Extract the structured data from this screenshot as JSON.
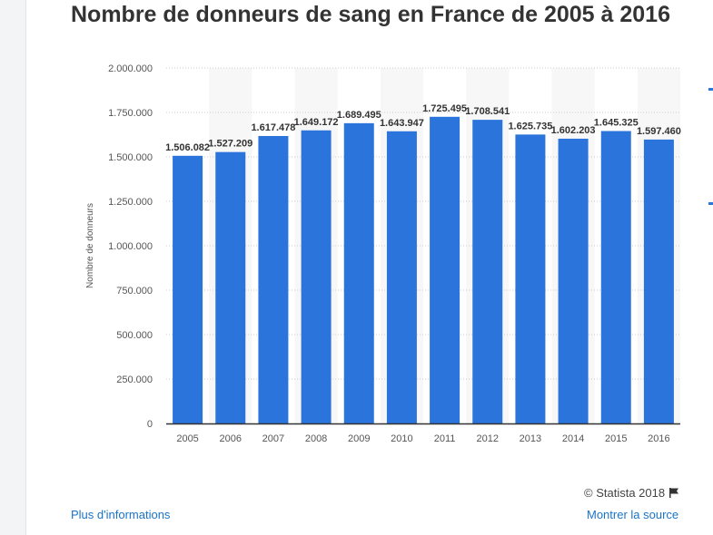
{
  "title": "Nombre de donneurs de sang en France de 2005 à 2016",
  "copyright": "© Statista 2018",
  "links": {
    "more_info": "Plus d'informations",
    "show_source": "Montrer la source"
  },
  "icons": {
    "flag": "flag-icon"
  },
  "colors": {
    "bar": "#2b74db",
    "title": "#333333",
    "link": "#1a73c6"
  },
  "chart_data": {
    "type": "bar",
    "categories": [
      "2005",
      "2006",
      "2007",
      "2008",
      "2009",
      "2010",
      "2011",
      "2012",
      "2013",
      "2014",
      "2015",
      "2016"
    ],
    "values": [
      1506082,
      1527209,
      1617478,
      1649172,
      1689495,
      1643947,
      1725495,
      1708541,
      1625735,
      1602203,
      1645325,
      1597460
    ],
    "value_labels": [
      "1.506.082",
      "1.527.209",
      "1.617.478",
      "1.649.172",
      "1.689.495",
      "1.643.947",
      "1.725.495",
      "1.708.541",
      "1.625.735",
      "1.602.203",
      "1.645.325",
      "1.597.460"
    ],
    "ylabel": "Nombre de donneurs",
    "xlabel": "",
    "ylim": [
      0,
      2000000
    ],
    "yticks": [
      0,
      250000,
      500000,
      750000,
      1000000,
      1250000,
      1500000,
      1750000,
      2000000
    ],
    "ytick_labels": [
      "0",
      "250.000",
      "500.000",
      "750.000",
      "1.000.000",
      "1.250.000",
      "1.500.000",
      "1.750.000",
      "2.000.000"
    ],
    "grid": true
  }
}
